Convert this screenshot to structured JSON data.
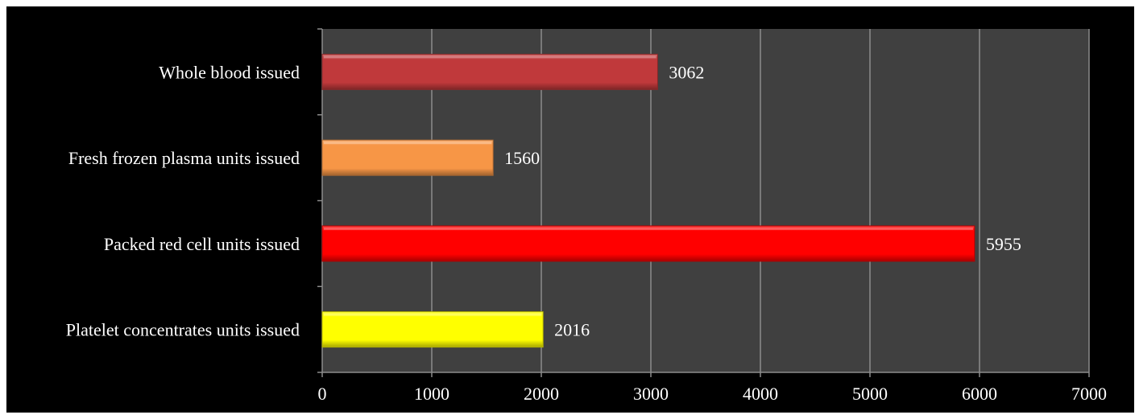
{
  "chart_data": {
    "type": "bar",
    "orientation": "horizontal",
    "categories": [
      "Whole blood issued",
      "Fresh frozen plasma units issued",
      "Packed red cell units issued",
      "Platelet concentrates units issued"
    ],
    "values": [
      3062,
      1560,
      5955,
      2016
    ],
    "value_labels": [
      "3062",
      "1560",
      "5955",
      "2016"
    ],
    "bar_colors": [
      "#c0393b",
      "#f79646",
      "#ff0000",
      "#ffff00"
    ],
    "xlim": [
      0,
      7000
    ],
    "x_ticks": [
      0,
      1000,
      2000,
      3000,
      4000,
      5000,
      6000,
      7000
    ],
    "x_tick_labels": [
      "0",
      "1000",
      "2000",
      "3000",
      "4000",
      "5000",
      "6000",
      "7000"
    ],
    "grid": true,
    "legend": "none",
    "title": "",
    "xlabel": "",
    "ylabel": "",
    "background_color": "#000000",
    "plot_area_color": "#404040",
    "grid_color": "#8c8c8c"
  }
}
